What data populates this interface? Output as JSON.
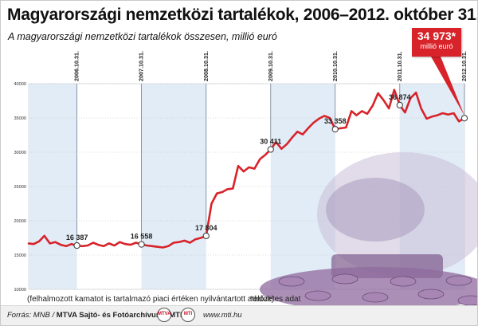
{
  "title": "Magyarországi nemzetközi tartalékok, 2006–2012. október 31.",
  "subtitle": "A magyarországi nemzetközi tartalékok összesen, millió euró",
  "callout": {
    "value": "34 973*",
    "unit": "millió euró"
  },
  "note_left": "(felhalmozott kamatot is tartalmazó piaci értéken nyilvántartott adatok)",
  "note_right": "*előzetes adat",
  "source_label": "Forrás: MNB / ",
  "source_name": "MTVA Sajtó- és Fotóarchívum / MTI",
  "logos": [
    "MTVA",
    "MTI"
  ],
  "site": "www.mti.hu",
  "colors": {
    "line": "#d8232a",
    "band": "#dce9f6",
    "guide": "#6e7f90",
    "title": "#111111"
  },
  "chart_data": {
    "type": "line",
    "ylim": [
      10000,
      40000
    ],
    "yticks": [
      10000,
      15000,
      20000,
      25000,
      30000,
      35000,
      40000
    ],
    "x_range": [
      "2006-01-31",
      "2012-10-31"
    ],
    "year_markers": [
      "2006.10.31.",
      "2007.10.31.",
      "2008.10.31.",
      "2009.10.31.",
      "2010.10.31.",
      "2011.10.31.",
      "2012.10.31."
    ],
    "markers": [
      {
        "date": "2006-10-31",
        "label": "16 387",
        "value": 16387
      },
      {
        "date": "2007-10-31",
        "label": "16 558",
        "value": 16558
      },
      {
        "date": "2008-10-31",
        "label": "17 804",
        "value": 17804
      },
      {
        "date": "2009-10-31",
        "label": "30 411",
        "value": 30411
      },
      {
        "date": "2010-10-31",
        "label": "33 358",
        "value": 33358
      },
      {
        "date": "2011-10-31",
        "label": "36 874",
        "value": 36874
      },
      {
        "date": "2012-10-31",
        "label": "",
        "value": 34973
      }
    ],
    "series": [
      {
        "values": [
          [
            "2006-01-31",
            16700
          ],
          [
            "2006-02-28",
            16600
          ],
          [
            "2006-03-31",
            17000
          ],
          [
            "2006-04-30",
            17800
          ],
          [
            "2006-05-31",
            16700
          ],
          [
            "2006-06-30",
            16900
          ],
          [
            "2006-07-31",
            16500
          ],
          [
            "2006-08-31",
            16300
          ],
          [
            "2006-09-30",
            16600
          ],
          [
            "2006-10-31",
            16387
          ],
          [
            "2006-11-30",
            16300
          ],
          [
            "2006-12-31",
            16400
          ],
          [
            "2007-01-31",
            16800
          ],
          [
            "2007-02-28",
            16500
          ],
          [
            "2007-03-31",
            16300
          ],
          [
            "2007-04-30",
            16700
          ],
          [
            "2007-05-31",
            16400
          ],
          [
            "2007-06-30",
            16900
          ],
          [
            "2007-07-31",
            16600
          ],
          [
            "2007-08-31",
            16500
          ],
          [
            "2007-09-30",
            16800
          ],
          [
            "2007-10-31",
            16558
          ],
          [
            "2007-11-30",
            16400
          ],
          [
            "2007-12-31",
            16300
          ],
          [
            "2008-01-31",
            16200
          ],
          [
            "2008-02-29",
            16100
          ],
          [
            "2008-03-31",
            16300
          ],
          [
            "2008-04-30",
            16800
          ],
          [
            "2008-05-31",
            16900
          ],
          [
            "2008-06-30",
            17100
          ],
          [
            "2008-07-31",
            16800
          ],
          [
            "2008-08-31",
            17300
          ],
          [
            "2008-09-30",
            17500
          ],
          [
            "2008-10-31",
            17804
          ],
          [
            "2008-11-30",
            22500
          ],
          [
            "2008-12-31",
            24000
          ],
          [
            "2009-01-31",
            24200
          ],
          [
            "2009-02-28",
            24600
          ],
          [
            "2009-03-31",
            24700
          ],
          [
            "2009-04-30",
            28000
          ],
          [
            "2009-05-31",
            27200
          ],
          [
            "2009-06-30",
            27800
          ],
          [
            "2009-07-31",
            27600
          ],
          [
            "2009-08-31",
            29000
          ],
          [
            "2009-09-30",
            29600
          ],
          [
            "2009-10-31",
            30411
          ],
          [
            "2009-11-30",
            31500
          ],
          [
            "2009-12-31",
            30500
          ],
          [
            "2010-01-31",
            31200
          ],
          [
            "2010-02-28",
            32100
          ],
          [
            "2010-03-31",
            33000
          ],
          [
            "2010-04-30",
            32600
          ],
          [
            "2010-05-31",
            33500
          ],
          [
            "2010-06-30",
            34300
          ],
          [
            "2010-07-31",
            34900
          ],
          [
            "2010-08-31",
            35300
          ],
          [
            "2010-09-30",
            35000
          ],
          [
            "2010-10-31",
            33358
          ],
          [
            "2010-11-30",
            33500
          ],
          [
            "2010-12-31",
            33600
          ],
          [
            "2011-01-31",
            36000
          ],
          [
            "2011-02-28",
            35400
          ],
          [
            "2011-03-31",
            36000
          ],
          [
            "2011-04-30",
            35600
          ],
          [
            "2011-05-31",
            36800
          ],
          [
            "2011-06-30",
            38600
          ],
          [
            "2011-07-31",
            37600
          ],
          [
            "2011-08-31",
            36400
          ],
          [
            "2011-09-30",
            39100
          ],
          [
            "2011-10-31",
            36874
          ],
          [
            "2011-11-30",
            35800
          ],
          [
            "2011-12-31",
            37900
          ],
          [
            "2012-01-31",
            38700
          ],
          [
            "2012-02-29",
            36400
          ],
          [
            "2012-03-31",
            34900
          ],
          [
            "2012-04-30",
            35200
          ],
          [
            "2012-05-31",
            35400
          ],
          [
            "2012-06-30",
            35700
          ],
          [
            "2012-07-31",
            35500
          ],
          [
            "2012-08-31",
            35700
          ],
          [
            "2012-09-30",
            34500
          ],
          [
            "2012-10-31",
            34973
          ]
        ]
      }
    ]
  }
}
